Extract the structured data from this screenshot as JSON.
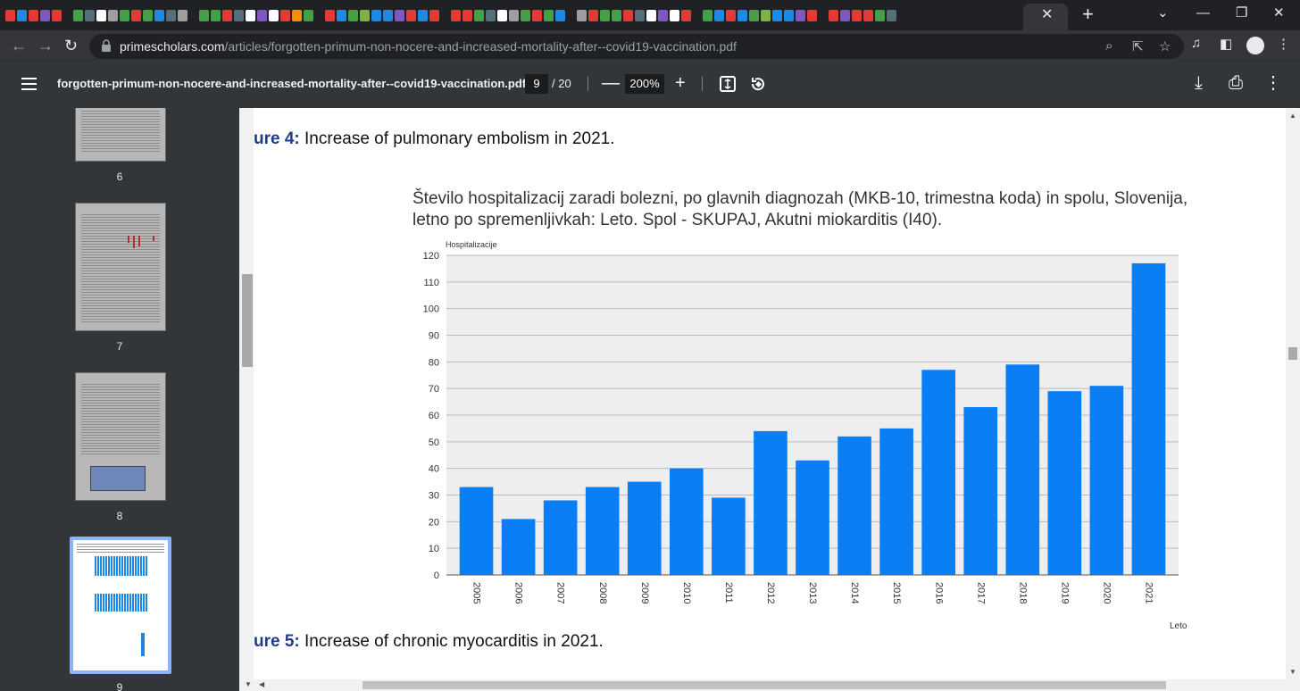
{
  "browser": {
    "active_tab_close": "✕",
    "new_tab": "+",
    "window_controls": {
      "minimize": "—",
      "restore": "❐",
      "close": "✕",
      "tabs_dropdown": "⌄"
    },
    "nav": {
      "back": "←",
      "forward": "→",
      "reload": "↻"
    },
    "url_host": "primescholars.com",
    "url_path": "/articles/forgotten-primum-non-nocere-and-increased-mortality-after--covid19-vaccination.pdf",
    "icons": [
      "zoom-icon",
      "share-icon",
      "star-icon",
      "media-icon",
      "sidepanel-icon",
      "profile-icon",
      "kebab-icon"
    ]
  },
  "pdf_toolbar": {
    "filename": "forgotten-primum-non-nocere-and-increased-mortality-after--covid19-vaccination.pdf",
    "current_page": "9",
    "total_pages": "/ 20",
    "zoom": "200%",
    "zoom_out": "—",
    "zoom_in": "+",
    "download": "⤓",
    "print": "⎙",
    "more": "⋮"
  },
  "sidebar": {
    "thumbnails": [
      {
        "label": "6"
      },
      {
        "label": "7"
      },
      {
        "label": "8"
      },
      {
        "label": "9"
      }
    ]
  },
  "document": {
    "figure4_label": "ure 4:",
    "figure4_text": " Increase of pulmonary embolism in 2021.",
    "figure5_label": "ure 5:",
    "figure5_text": " Increase of chronic myocarditis in 2021."
  },
  "chart_data": {
    "type": "bar",
    "title": "Število hospitalizacij zaradi bolezni, po glavnih diagnozah (MKB-10, trimestna koda) in spolu, Slovenija, letno po spremenljivkah: Leto. Spol - SKUPAJ, Akutni miokarditis (I40).",
    "ylabel": "Hospitalizacije",
    "xlabel": "Leto",
    "ylim": [
      0,
      120
    ],
    "yticks": [
      0,
      10,
      20,
      30,
      40,
      50,
      60,
      70,
      80,
      90,
      100,
      110,
      120
    ],
    "categories": [
      "2005",
      "2006",
      "2007",
      "2008",
      "2009",
      "2010",
      "2011",
      "2012",
      "2013",
      "2014",
      "2015",
      "2016",
      "2017",
      "2018",
      "2019",
      "2020",
      "2021"
    ],
    "values": [
      33,
      21,
      28,
      33,
      35,
      40,
      29,
      54,
      43,
      52,
      55,
      77,
      63,
      79,
      69,
      71,
      117
    ],
    "bar_color": "#0a7ff5",
    "plot_bg": "#eeeeee",
    "grid": true
  }
}
